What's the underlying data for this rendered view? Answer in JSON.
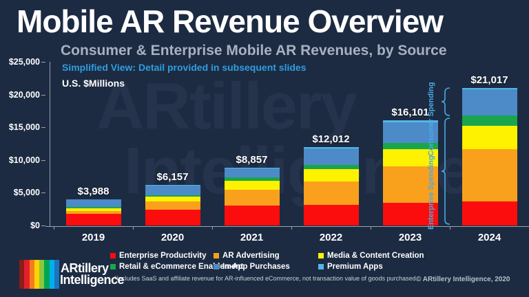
{
  "page": {
    "title": "Mobile AR Revenue Overview",
    "subtitle": "Consumer & Enterprise Mobile AR Revenues, by Source",
    "note": "Simplified View: Detail provided in subsequent slides",
    "units_label": "U.S. $Millions",
    "background_color": "#1c2b42",
    "watermark_line1": "ARtillery",
    "watermark_line2": "Intelligence"
  },
  "chart_data": {
    "type": "bar",
    "stacked": true,
    "title": "Consumer & Enterprise Mobile AR Revenues, by Source",
    "ylabel": "U.S. $Millions",
    "ylim": [
      0,
      25000
    ],
    "y_ticks": [
      "$25,000",
      "$20,000",
      "$15,000",
      "$10,000",
      "$5,000",
      "$0"
    ],
    "grid": false,
    "legend_position": "bottom",
    "categories": [
      "2019",
      "2020",
      "2021",
      "2022",
      "2023",
      "2024"
    ],
    "totals": [
      3988,
      6157,
      8857,
      12012,
      16101,
      21017
    ],
    "total_labels": [
      "$3,988",
      "$6,157",
      "$8,857",
      "$12,012",
      "$16,101",
      "$21,017"
    ],
    "series": [
      {
        "name": "Enterprise Productivity",
        "color": "#fc0d0d",
        "values": [
          1800,
          2380,
          3060,
          3190,
          3470,
          3675
        ]
      },
      {
        "name": "AR Advertising",
        "color": "#f9a11c",
        "values": [
          360,
          1340,
          2400,
          3510,
          5580,
          7980
        ]
      },
      {
        "name": "Media & Content Creation",
        "color": "#fef200",
        "values": [
          455,
          700,
          1360,
          1910,
          2630,
          3570
        ]
      },
      {
        "name": "Retail & eCommerce Enablement",
        "color": "#1aa54c",
        "values": [
          210,
          200,
          500,
          640,
          950,
          1575
        ]
      },
      {
        "name": "In-App Purchases",
        "color": "#4d8ac8",
        "values": [
          1123,
          1457,
          1437,
          2552,
          3156,
          3990
        ]
      },
      {
        "name": "Premium Apps",
        "color": "#4fb9ea",
        "values": [
          40,
          80,
          100,
          210,
          315,
          227
        ]
      }
    ],
    "annotations": {
      "consumer": "Consumer Spending",
      "enterprise": "Enterprise Spending",
      "brace_color": "#4aaae2"
    }
  },
  "footer": {
    "footnote": "*Includes SaaS and affiliate revenue for AR-influenced eCommerce, not transaction value of goods purchased.",
    "copyright": "© ARtillery Intelligence, 2020",
    "logo_line1": "ARtillery",
    "logo_line2": "Intelligence",
    "logo_stripe_colors": [
      "#8c1d18",
      "#e3202b",
      "#f47b20",
      "#ffd200",
      "#8dc63f",
      "#00a651",
      "#00aeef",
      "#1b75bb"
    ]
  }
}
